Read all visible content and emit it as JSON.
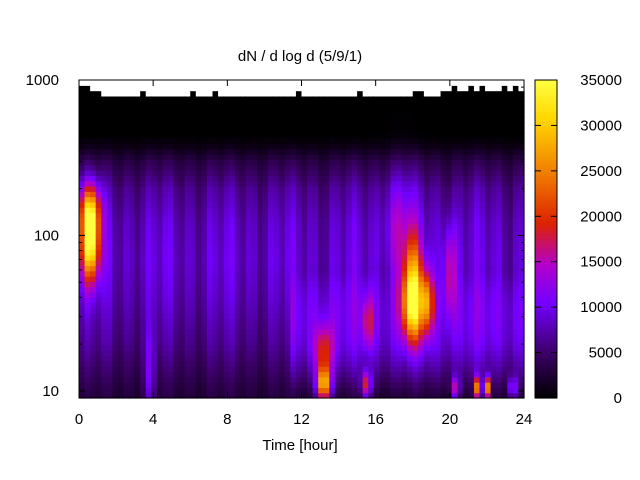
{
  "chart_data": {
    "type": "heatmap",
    "title": "dN / d log d (5/9/1)",
    "xlabel": "Time [hour]",
    "ylabel": "",
    "x_ticks": [
      0,
      4,
      8,
      12,
      16,
      20,
      24
    ],
    "x_tick_labels": [
      "0",
      "4",
      "8",
      "12",
      "16",
      "20",
      "24"
    ],
    "xlim": [
      0,
      24
    ],
    "y_scale": "log",
    "ylim": [
      9,
      1000
    ],
    "y_ticks": [
      10,
      100,
      1000
    ],
    "y_tick_labels": [
      "10",
      "100",
      "1000"
    ],
    "colorbar": {
      "ticks": [
        0,
        5000,
        10000,
        15000,
        20000,
        25000,
        30000,
        35000
      ],
      "tick_labels": [
        "0",
        "5000",
        "10000",
        "15000",
        "20000",
        "25000",
        "30000",
        "35000"
      ],
      "range": [
        0,
        35000
      ],
      "palette": "black-purple-red-orange-yellow"
    },
    "colors": {
      "c0": "#000000",
      "c1": "#3a0064",
      "c2": "#7300ff",
      "c3": "#b300cc",
      "c4": "#dc2200",
      "c5": "#f07800",
      "c6": "#ffd700",
      "c7": "#ffff40"
    },
    "background_level": [
      {
        "d": 9.5,
        "v": 3000
      },
      {
        "d": 12,
        "v": 4000
      },
      {
        "d": 20,
        "v": 6200
      },
      {
        "d": 40,
        "v": 8000
      },
      {
        "d": 70,
        "v": 8800
      },
      {
        "d": 120,
        "v": 8200
      },
      {
        "d": 200,
        "v": 6500
      },
      {
        "d": 300,
        "v": 3500
      },
      {
        "d": 380,
        "v": 900
      },
      {
        "d": 450,
        "v": 0
      },
      {
        "d": 1000,
        "v": 0
      }
    ],
    "afternoon_boost": {
      "start_hour": 11.5,
      "end_hour": 24,
      "low_d": 9.5,
      "high_d": 60,
      "extra": 3500
    },
    "hotspots": [
      {
        "hour": 0.6,
        "d": 90,
        "v": 26000,
        "w_hour": 0.35,
        "w_logd": 0.17
      },
      {
        "hour": 0.6,
        "d": 150,
        "v": 15000,
        "w_hour": 0.4,
        "w_logd": 0.12
      },
      {
        "hour": 13.2,
        "d": 11,
        "v": 25000,
        "w_hour": 0.25,
        "w_logd": 0.08
      },
      {
        "hour": 13.2,
        "d": 18,
        "v": 12000,
        "w_hour": 0.35,
        "w_logd": 0.12
      },
      {
        "hour": 15.5,
        "d": 11,
        "v": 15000,
        "w_hour": 0.18,
        "w_logd": 0.06
      },
      {
        "hour": 15.6,
        "d": 28,
        "v": 9000,
        "w_hour": 0.2,
        "w_logd": 0.12
      },
      {
        "hour": 18.0,
        "d": 35,
        "v": 22000,
        "w_hour": 0.4,
        "w_logd": 0.16
      },
      {
        "hour": 18.0,
        "d": 60,
        "v": 12000,
        "w_hour": 0.35,
        "w_logd": 0.18
      },
      {
        "hour": 18.8,
        "d": 38,
        "v": 15000,
        "w_hour": 0.22,
        "w_logd": 0.14
      },
      {
        "hour": 20.0,
        "d": 60,
        "v": 9000,
        "w_hour": 0.25,
        "w_logd": 0.2
      },
      {
        "hour": 20.3,
        "d": 10.5,
        "v": 12000,
        "w_hour": 0.15,
        "w_logd": 0.05
      },
      {
        "hour": 21.5,
        "d": 10.5,
        "v": 22000,
        "w_hour": 0.12,
        "w_logd": 0.05
      },
      {
        "hour": 22.0,
        "d": 10.5,
        "v": 24000,
        "w_hour": 0.12,
        "w_logd": 0.05
      },
      {
        "hour": 23.4,
        "d": 10.5,
        "v": 12000,
        "w_hour": 0.15,
        "w_logd": 0.05
      },
      {
        "hour": 3.8,
        "d": 12,
        "v": 6000,
        "w_hour": 0.2,
        "w_logd": 0.2
      },
      {
        "hour": 17.3,
        "d": 120,
        "v": 6000,
        "w_hour": 0.6,
        "w_logd": 0.25
      }
    ],
    "top_boundary_d": [
      900,
      900,
      880,
      880,
      800,
      780,
      810,
      800,
      790,
      820,
      800,
      850,
      790,
      800,
      800,
      760,
      790,
      800,
      820,
      800,
      850,
      800,
      800,
      770,
      830,
      800,
      790,
      800,
      780,
      820,
      760,
      800,
      790,
      820,
      800,
      770,
      790,
      800,
      820,
      840,
      800,
      790,
      780,
      810,
      800,
      820,
      800,
      790,
      810,
      800,
      870,
      820,
      800,
      780,
      810,
      800,
      820,
      790,
      800,
      780,
      860,
      880,
      800,
      820,
      800,
      850,
      880,
      900,
      880,
      860,
      900,
      880,
      900,
      880,
      860,
      880,
      900,
      880,
      900,
      880
    ]
  }
}
